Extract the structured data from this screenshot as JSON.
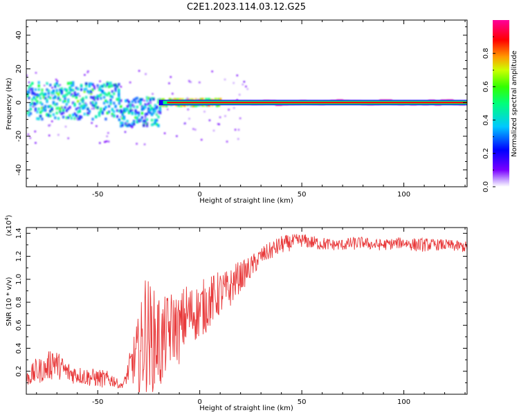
{
  "figure_title": "C2E1.2023.114.03.12.G25",
  "colorbar": {
    "label": "Normalized spectral amplitude",
    "ticks": [
      "0.0",
      "0.2",
      "0.4",
      "0.6",
      "0.8"
    ],
    "tick_values": [
      0.0,
      0.2,
      0.4,
      0.6,
      0.8
    ],
    "range": [
      0,
      1
    ]
  },
  "chart_data": [
    {
      "type": "heatmap",
      "title": "",
      "xlabel": "Height of straight line (km)",
      "ylabel": "Frequency (Hz)",
      "xlim": [
        -85,
        131
      ],
      "ylim": [
        -50,
        49
      ],
      "xticks": [
        -50,
        0,
        50,
        100
      ],
      "xtick_labels": [
        "-50",
        "0",
        "50",
        "100"
      ],
      "yticks": [
        -40,
        -20,
        0,
        20,
        40
      ],
      "ytick_labels": [
        "-40",
        "-20",
        "0",
        "20",
        "40"
      ],
      "grid": false,
      "description_bands": [
        {
          "x_range": [
            -85,
            -40
          ],
          "freq_spread_hz": [
            -10,
            12
          ],
          "amplitude_range": [
            0.15,
            0.55
          ]
        },
        {
          "x_range": [
            -40,
            -20
          ],
          "freq_spread_hz": [
            -14,
            3
          ],
          "amplitude_range": [
            0.15,
            0.5
          ]
        },
        {
          "x_range": [
            -20,
            10
          ],
          "freq_spread_hz": [
            -2,
            2
          ],
          "amplitude_range": [
            0.4,
            0.85
          ]
        },
        {
          "x_range": [
            10,
            131
          ],
          "freq_spread_hz": [
            -1,
            1
          ],
          "amplitude_range": [
            0.85,
            0.95
          ]
        }
      ]
    },
    {
      "type": "line",
      "title": "",
      "xlabel": "Height of straight line (km)",
      "ylabel": "SNR (10 * v/v)",
      "y_multiplier": "(x10",
      "y_multiplier_exp": "4",
      "y_multiplier_close": ")",
      "xlim": [
        -85,
        131
      ],
      "ylim": [
        0,
        1.45
      ],
      "xticks": [
        -50,
        0,
        50,
        100
      ],
      "xtick_labels": [
        "-50",
        "0",
        "50",
        "100"
      ],
      "yticks": [
        0.2,
        0.4,
        0.6,
        0.8,
        1.0,
        1.2,
        1.4
      ],
      "ytick_labels": [
        "0.2",
        "0.4",
        "0.6",
        "0.8",
        "1.0",
        "1.2",
        "1.4"
      ],
      "grid": false,
      "color": "#e8393a",
      "series": [
        {
          "x": [
            -85,
            -80,
            -75,
            -72,
            -70,
            -65,
            -60,
            -55,
            -50,
            -46,
            -42,
            -39,
            -37,
            -34,
            -31,
            -29,
            -27,
            -25,
            -23,
            -21,
            -19,
            -17,
            -15,
            -12,
            -10,
            -7,
            -4,
            0,
            3,
            6,
            10,
            14,
            18,
            22,
            26,
            30,
            35,
            40,
            45,
            50,
            55,
            60,
            65,
            70,
            75,
            80,
            85,
            90,
            95,
            100,
            105,
            110,
            115,
            120,
            125,
            131
          ],
          "mean": [
            0.13,
            0.2,
            0.22,
            0.3,
            0.26,
            0.19,
            0.17,
            0.15,
            0.14,
            0.13,
            0.12,
            0.07,
            0.1,
            0.25,
            0.32,
            0.35,
            0.55,
            0.52,
            0.45,
            0.5,
            0.42,
            0.5,
            0.55,
            0.6,
            0.55,
            0.68,
            0.7,
            0.72,
            0.78,
            0.82,
            0.88,
            0.9,
            1.0,
            1.05,
            1.12,
            1.2,
            1.25,
            1.3,
            1.32,
            1.34,
            1.32,
            1.31,
            1.3,
            1.3,
            1.31,
            1.32,
            1.3,
            1.3,
            1.31,
            1.32,
            1.3,
            1.3,
            1.3,
            1.3,
            1.29,
            1.28
          ],
          "amp": [
            0.06,
            0.12,
            0.1,
            0.18,
            0.12,
            0.1,
            0.08,
            0.08,
            0.08,
            0.08,
            0.06,
            0.02,
            0.04,
            0.14,
            0.3,
            0.4,
            0.55,
            0.5,
            0.45,
            0.45,
            0.42,
            0.35,
            0.35,
            0.3,
            0.3,
            0.3,
            0.25,
            0.25,
            0.25,
            0.22,
            0.2,
            0.18,
            0.15,
            0.12,
            0.1,
            0.08,
            0.08,
            0.08,
            0.07,
            0.06,
            0.06,
            0.06,
            0.05,
            0.05,
            0.06,
            0.05,
            0.05,
            0.05,
            0.05,
            0.05,
            0.06,
            0.06,
            0.05,
            0.05,
            0.05,
            0.05
          ]
        }
      ]
    }
  ]
}
